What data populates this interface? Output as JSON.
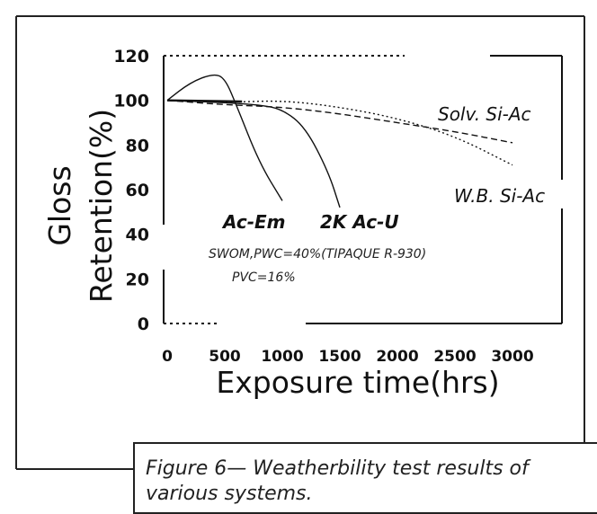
{
  "chart_data": {
    "type": "line",
    "xlabel": "Exposure time(hrs)",
    "ylabel_line1": "Gloss",
    "ylabel_line2": "Retention(%)",
    "x_ticks": [
      "0",
      "500",
      "1000",
      "1500",
      "2000",
      "2500",
      "3000"
    ],
    "y_ticks": [
      "0",
      "20",
      "40",
      "60",
      "80",
      "100",
      "120"
    ],
    "xlim": [
      0,
      3000
    ],
    "ylim": [
      0,
      120
    ],
    "series": [
      {
        "name": "Ac-Em",
        "style": "solid",
        "x": [
          0,
          200,
          400,
          500,
          600,
          800,
          1000
        ],
        "y": [
          100,
          108,
          112,
          110,
          98,
          72,
          55
        ]
      },
      {
        "name": "2K Ac-U",
        "style": "solid",
        "x": [
          0,
          500,
          800,
          1000,
          1200,
          1400,
          1500
        ],
        "y": [
          100,
          99,
          98,
          96,
          88,
          68,
          52
        ]
      },
      {
        "name": "Solv. Si-Ac",
        "style": "dashed",
        "x": [
          0,
          500,
          1000,
          1500,
          2000,
          2500,
          3000
        ],
        "y": [
          100,
          98,
          97,
          94,
          90,
          86,
          81
        ]
      },
      {
        "name": "W.B. Si-Ac",
        "style": "dotted",
        "x": [
          0,
          500,
          1000,
          1500,
          2000,
          2500,
          3000
        ],
        "y": [
          100,
          99,
          100,
          97,
          92,
          84,
          71
        ]
      }
    ],
    "annotations": {
      "series_labels": [
        "Solv. Si-Ac",
        "W.B. Si-Ac",
        "Ac-Em",
        "2K Ac-U"
      ],
      "note_line1": "SWOM,PWC=40%(TIPAQUE R-930)",
      "note_line2": "PVC=16%"
    }
  },
  "caption": "Figure 6— Weatherbility test results of various systems."
}
